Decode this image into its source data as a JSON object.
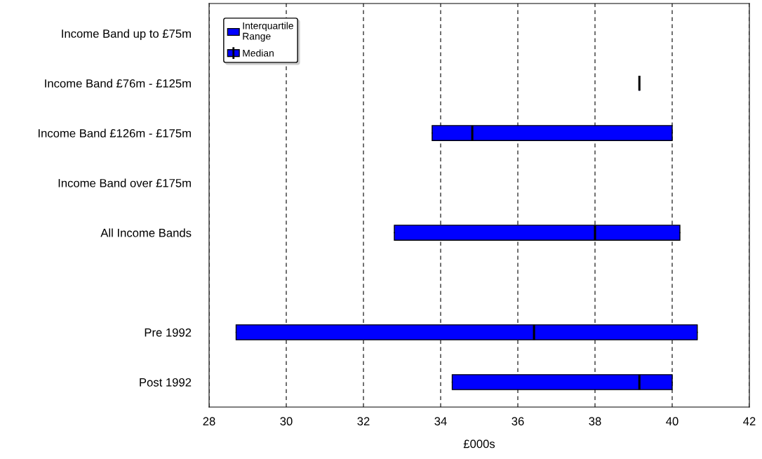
{
  "chart_data": {
    "type": "box",
    "orientation": "horizontal",
    "xlabel": "£000s",
    "categories": [
      "Income Band up to £75m",
      "Income Band £76m - £125m",
      "Income Band £126m - £175m",
      "Income Band over £175m",
      "All Income Bands",
      null,
      "Pre 1992",
      "Post 1992"
    ],
    "series": [
      {
        "name": "Interquartile Range",
        "color": "#0000ff",
        "boxes": [
          null,
          {
            "low": 39.15,
            "q1": 39.15,
            "median": 39.15,
            "q3": 39.15,
            "high": 39.15
          },
          {
            "low": 33.78,
            "q1": 33.78,
            "median": 34.82,
            "q3": 40.0,
            "high": 40.0
          },
          null,
          {
            "low": 32.8,
            "q1": 32.8,
            "median": 38.0,
            "q3": 40.2,
            "high": 40.2
          },
          null,
          {
            "low": 28.7,
            "q1": 28.7,
            "median": 36.42,
            "q3": 40.65,
            "high": 40.65
          },
          {
            "low": 34.3,
            "q1": 34.3,
            "median": 39.15,
            "q3": 40.0,
            "high": 40.0
          }
        ]
      }
    ],
    "annotations": [
      "Median"
    ],
    "xlim": [
      28,
      42
    ],
    "xticks": [
      28,
      30,
      32,
      34,
      36,
      38,
      40,
      42
    ],
    "grid": "x",
    "legend": "top left"
  }
}
